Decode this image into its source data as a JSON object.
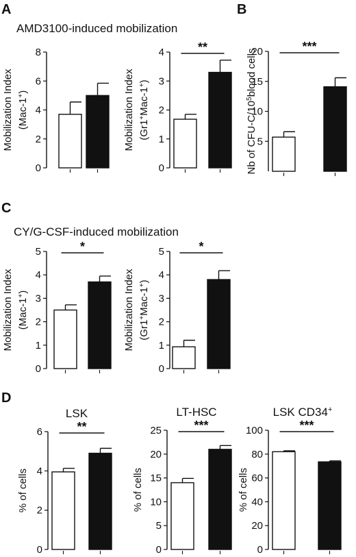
{
  "panels": {
    "A": {
      "letter": "A",
      "title": "AMD3100-induced mobilization"
    },
    "B": {
      "letter": "B"
    },
    "C": {
      "letter": "C",
      "title": "CY/G-CSF-induced mobilization"
    },
    "D": {
      "letter": "D"
    }
  },
  "colors": {
    "control_bar": "#ffffff",
    "treated_bar": "#111111",
    "stroke": "#111111"
  },
  "chart_data": [
    {
      "id": "a1",
      "panel": "A",
      "type": "bar",
      "title": "",
      "ylabel_lines": [
        [
          "Mobilization Index"
        ],
        [
          "(Mac-1",
          {
            "sup": "+"
          },
          ")"
        ]
      ],
      "ylim": [
        0,
        8
      ],
      "yticks": [
        "0",
        "2",
        "4",
        "6",
        "8"
      ],
      "bars": [
        {
          "fill": "white",
          "value": 3.7,
          "error": 0.85
        },
        {
          "fill": "black",
          "value": 5.0,
          "error": 0.85
        }
      ],
      "significance": ""
    },
    {
      "id": "a2",
      "panel": "A",
      "type": "bar",
      "title": "",
      "ylabel_lines": [
        [
          "Mobilization Index"
        ],
        [
          "(Gr1",
          {
            "sup": "+"
          },
          "Mac-1",
          {
            "sup": "+"
          },
          ")"
        ]
      ],
      "ylim": [
        0,
        4
      ],
      "yticks": [
        "0",
        "1",
        "2",
        "3",
        "4"
      ],
      "bars": [
        {
          "fill": "white",
          "value": 1.68,
          "error": 0.17
        },
        {
          "fill": "black",
          "value": 3.3,
          "error": 0.42
        }
      ],
      "significance": "**"
    },
    {
      "id": "b",
      "panel": "B",
      "type": "bar",
      "title": "",
      "ylabel_lines": [
        [
          "Nb of CFU-C/10",
          {
            "sup": "5"
          },
          "blood cells"
        ]
      ],
      "ylim": [
        0,
        20
      ],
      "yticks": [
        "5",
        "10",
        "15",
        "20"
      ],
      "bars": [
        {
          "fill": "white",
          "value": 5.7,
          "error": 0.9
        },
        {
          "fill": "black",
          "value": 14.1,
          "error": 1.5
        }
      ],
      "significance": "***"
    },
    {
      "id": "c1",
      "panel": "C",
      "type": "bar",
      "title": "",
      "ylabel_lines": [
        [
          "Mobilization Index"
        ],
        [
          "(Mac-1",
          {
            "sup": "+"
          },
          ")"
        ]
      ],
      "ylim": [
        0,
        5
      ],
      "yticks": [
        "0",
        "1",
        "2",
        "3",
        "4",
        "5"
      ],
      "bars": [
        {
          "fill": "white",
          "value": 2.5,
          "error": 0.22
        },
        {
          "fill": "black",
          "value": 3.7,
          "error": 0.25
        }
      ],
      "significance": "*"
    },
    {
      "id": "c2",
      "panel": "C",
      "type": "bar",
      "title": "",
      "ylabel_lines": [
        [
          "Mobilization Index"
        ],
        [
          "(Gr1",
          {
            "sup": "+"
          },
          "Mac-1",
          {
            "sup": "+"
          },
          ")"
        ]
      ],
      "ylim": [
        0,
        5
      ],
      "yticks": [
        "0",
        "1",
        "2",
        "3",
        "4",
        "5"
      ],
      "bars": [
        {
          "fill": "white",
          "value": 0.93,
          "error": 0.28
        },
        {
          "fill": "black",
          "value": 3.8,
          "error": 0.38
        }
      ],
      "significance": "*"
    },
    {
      "id": "d1",
      "panel": "D",
      "type": "bar",
      "title_parts": [
        "LSK"
      ],
      "ylabel_lines": [
        [
          "% of cells"
        ]
      ],
      "ylim": [
        0,
        6
      ],
      "yticks": [
        "0",
        "2",
        "4",
        "6"
      ],
      "bars": [
        {
          "fill": "white",
          "value": 3.95,
          "error": 0.18
        },
        {
          "fill": "black",
          "value": 4.9,
          "error": 0.25
        }
      ],
      "significance": "**"
    },
    {
      "id": "d2",
      "panel": "D",
      "type": "bar",
      "title_parts": [
        "LT-HSC"
      ],
      "ylabel_lines": [
        [
          "% of cells"
        ]
      ],
      "ylim": [
        0,
        25
      ],
      "yticks": [
        "0",
        "5",
        "10",
        "15",
        "20",
        "25"
      ],
      "bars": [
        {
          "fill": "white",
          "value": 14.0,
          "error": 0.9
        },
        {
          "fill": "black",
          "value": 21.0,
          "error": 0.8
        }
      ],
      "significance": "***"
    },
    {
      "id": "d3",
      "panel": "D",
      "type": "bar",
      "title_parts": [
        "LSK CD34",
        {
          "sup": "+"
        }
      ],
      "ylabel_lines": [
        [
          "% of cells"
        ]
      ],
      "ylim": [
        0,
        100
      ],
      "yticks": [
        "0",
        "20",
        "40",
        "60",
        "80",
        "100"
      ],
      "bars": [
        {
          "fill": "white",
          "value": 82.0,
          "error": 0.8
        },
        {
          "fill": "black",
          "value": 73.5,
          "error": 0.8
        }
      ],
      "significance": "***"
    }
  ]
}
